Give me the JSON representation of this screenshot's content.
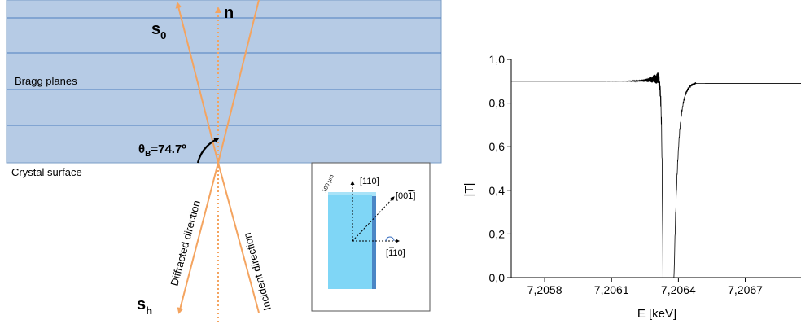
{
  "diagram": {
    "label_s0": "s",
    "label_s0_sub": "0",
    "label_n": "n",
    "label_sh": "s",
    "label_sh_sub": "h",
    "bragg_planes": "Bragg planes",
    "crystal_surface": "Crystal surface",
    "theta_symbol": "θ",
    "theta_sub": "B",
    "theta_value": "=74.7º",
    "diffracted": "Diffracted direction",
    "incident": "Incident direction",
    "crystal_bg_color": "#b6cbe5",
    "beam_color": "#f4a460"
  },
  "inset": {
    "axis_110": "[110]",
    "axis_001_prefix": "[00",
    "axis_001_bar": "1",
    "axis_001_suffix": "]",
    "axis_m110_prefix": "[",
    "axis_m110_bar": "1",
    "axis_m110_suffix": "10]",
    "thickness": "100 µm",
    "crystal_color": "#7fd6f6"
  },
  "chart_data": {
    "type": "line",
    "title": "",
    "xlabel": "E [keV]",
    "ylabel": "|T|",
    "xlim": [
      7.20565,
      7.20695
    ],
    "ylim": [
      0.0,
      1.0
    ],
    "xtick_values": [
      7.2058,
      7.2061,
      7.2064,
      7.2067
    ],
    "xtick_labels": [
      "7,2058",
      "7,2061",
      "7,2064",
      "7,2067"
    ],
    "ytick_values": [
      0.0,
      0.2,
      0.4,
      0.6,
      0.8,
      1.0
    ],
    "ytick_labels": [
      "0,0",
      "0,2",
      "0,4",
      "0,6",
      "0,8",
      "1,0"
    ],
    "gap_start": 7.20633,
    "gap_end": 7.20638,
    "baseline": 0.9,
    "peak_left": 0.94,
    "left_oscillation_start": 7.2062,
    "grid": false,
    "series_color": "#000000"
  }
}
